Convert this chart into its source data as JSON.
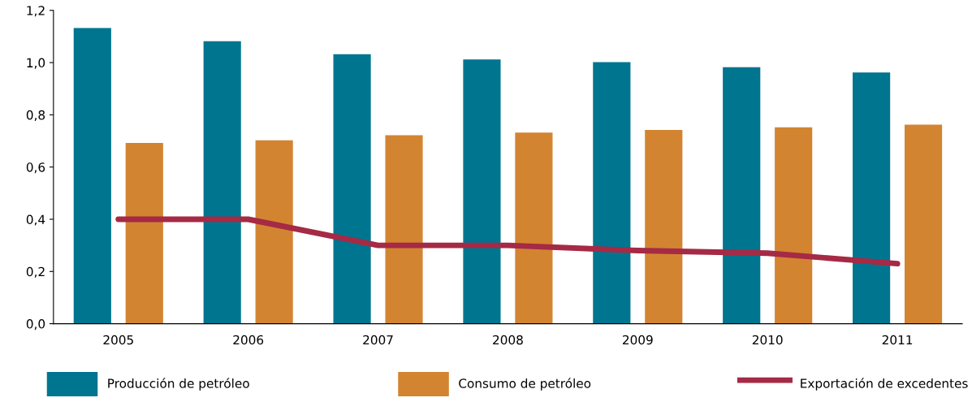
{
  "chart_data": {
    "type": "bar",
    "categories": [
      "2005",
      "2006",
      "2007",
      "2008",
      "2009",
      "2010",
      "2011"
    ],
    "series": [
      {
        "name": "Producción de petróleo",
        "color": "#00758f",
        "values": [
          1.13,
          1.08,
          1.03,
          1.01,
          1.0,
          0.98,
          0.96
        ]
      },
      {
        "name": "Consumo de petróleo",
        "color": "#d38431",
        "values": [
          0.69,
          0.7,
          0.72,
          0.73,
          0.74,
          0.75,
          0.76
        ]
      },
      {
        "name": "Exportación de excedentes",
        "color": "#a52a45",
        "type": "line",
        "values": [
          0.4,
          0.4,
          0.3,
          0.3,
          0.28,
          0.27,
          0.23
        ]
      }
    ],
    "ylim": [
      0,
      1.2
    ],
    "yticks": [
      {
        "value": 0,
        "label": "0,0"
      },
      {
        "value": 0.2,
        "label": "0,2"
      },
      {
        "value": 0.4,
        "label": "0,4"
      },
      {
        "value": 0.6,
        "label": "0,6"
      },
      {
        "value": 0.8,
        "label": "0,8"
      },
      {
        "value": 1.0,
        "label": "1,0"
      },
      {
        "value": 1.2,
        "label": "1,2"
      }
    ],
    "grid": false,
    "legend": "bottom",
    "marker": "none",
    "line_style": "solid"
  }
}
